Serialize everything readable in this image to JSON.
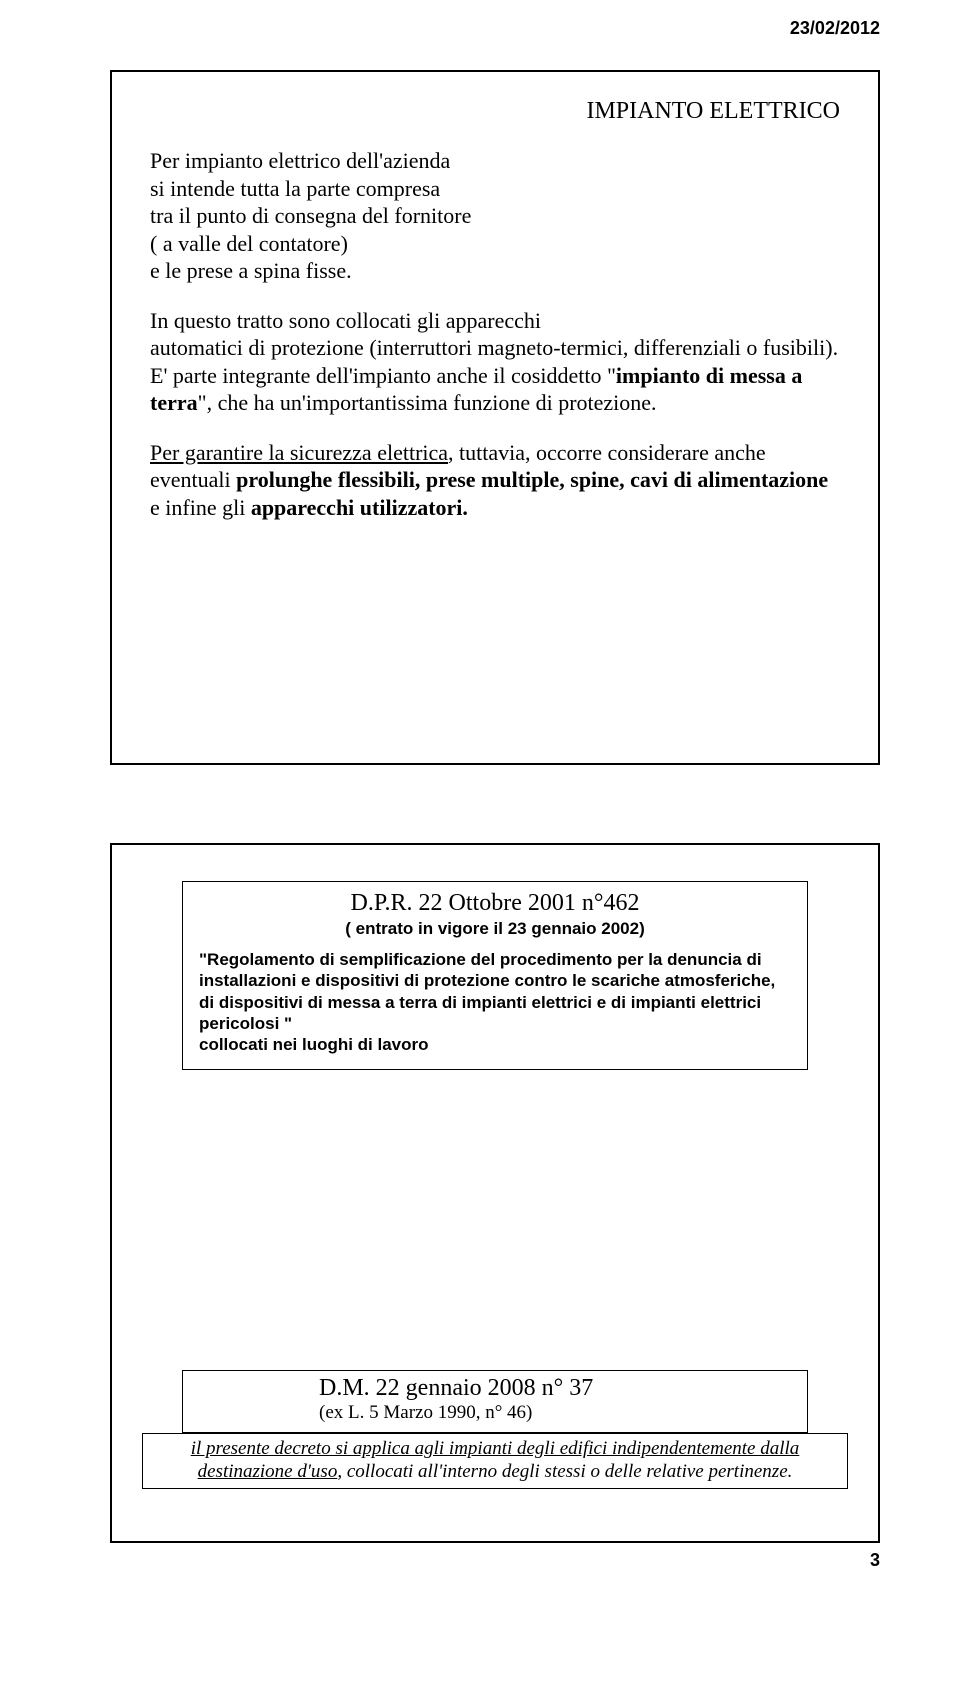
{
  "header": {
    "date": "23/02/2012"
  },
  "slide1": {
    "title": "IMPIANTO ELETTRICO",
    "p1_a": "Per impianto elettrico dell'azienda",
    "p1_b": "si intende tutta la parte compresa",
    "p1_c": "tra il punto di consegna del fornitore",
    "p1_d": "( a valle del contatore)",
    "p1_e": "e le prese a spina fisse.",
    "p2_a": "In questo tratto sono collocati gli apparecchi",
    "p2_b": "automatici di protezione (interruttori magneto-termici, differenziali o fusibili).",
    "p2_c": "E' parte integrante dell'impianto anche il cosiddetto \"",
    "p2_c_bold": "impianto di messa a terra",
    "p2_d": "\", che ha un'importantissima funzione di protezione.",
    "p3_a": "Per garantire la sicurezza elettrica",
    "p3_b": ", tuttavia, occorre considerare anche eventuali ",
    "p3_bold": "prolunghe flessibili, prese multiple, spine, cavi di alimentazione",
    "p3_c": " e infine gli ",
    "p3_bold2": "apparecchi utilizzatori.",
    "colors": {
      "text": "#000000",
      "border": "#000000",
      "background": "#ffffff"
    }
  },
  "slide2": {
    "dpr": {
      "title": "D.P.R. 22 Ottobre 2001 n°462",
      "subtitle": "( entrato in vigore il 23 gennaio 2002)",
      "body_a": "\"Regolamento di semplificazione del procedimento per la denuncia di installazioni e dispositivi di protezione contro le scariche atmosferiche, di dispositivi di messa a terra di impianti elettrici e di impianti elettrici pericolosi \"",
      "body_b": "collocati nei luoghi di lavoro"
    },
    "dm": {
      "title": "D.M. 22 gennaio 2008 n° 37",
      "subtitle": "(ex L. 5 Marzo 1990, n° 46)",
      "body_a": "il presente  decreto  si applica agli impianti degli edifici indipendentemente dalla destinazione d'uso",
      "body_b": ", collocati all'interno degli stessi o delle relative pertinenze."
    }
  },
  "footer": {
    "page_num": "3"
  }
}
